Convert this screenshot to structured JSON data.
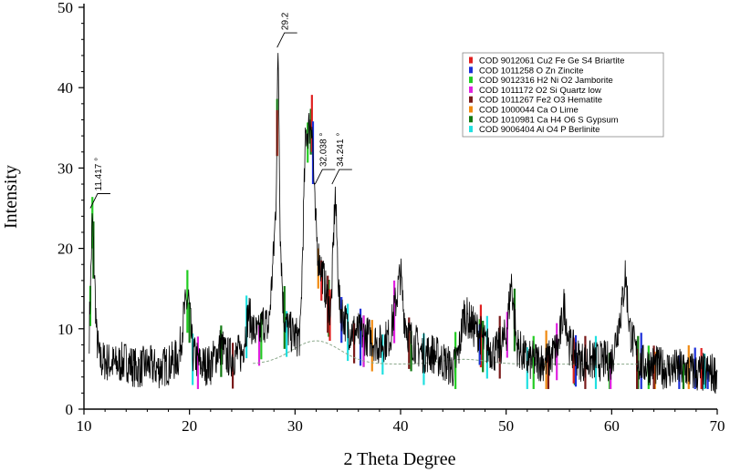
{
  "chart_data": {
    "type": "line",
    "xlabel": "2 Theta Degree",
    "ylabel": "Intensity",
    "xlim": [
      10,
      70
    ],
    "ylim": [
      0,
      50
    ],
    "x_ticks": [
      "10",
      "20",
      "30",
      "40",
      "50",
      "60",
      "70"
    ],
    "y_ticks": [
      "0",
      "10",
      "20",
      "30",
      "40",
      "50"
    ],
    "grid": false,
    "legend_position": "top-right",
    "series": [
      {
        "x": [
          10.5,
          10.8,
          11.2,
          11.5,
          12.0,
          13.0,
          14.0,
          15.0,
          16.0,
          17.0,
          18.0,
          19.0,
          19.5,
          19.9,
          20.3,
          21.0,
          22.0,
          23.0,
          23.5,
          24.0,
          25.0,
          25.6,
          26.0,
          26.5,
          27.0,
          27.5,
          28.0,
          28.2,
          28.4,
          28.6,
          28.9,
          29.3,
          30.0,
          30.5,
          31.0,
          31.3,
          31.6,
          31.9,
          32.2,
          32.6,
          33.0,
          33.4,
          33.8,
          34.2,
          35.0,
          36.0,
          37.0,
          38.0,
          39.0,
          40.0,
          40.3,
          40.8,
          41.5,
          42.0,
          43.0,
          44.0,
          45.0,
          45.5,
          46.0,
          46.5,
          47.0,
          47.5,
          48.0,
          49.0,
          50.0,
          50.5,
          51.0,
          52.0,
          53.0,
          54.0,
          55.0,
          55.5,
          56.0,
          57.0,
          58.0,
          59.0,
          60.0,
          61.0,
          61.3,
          61.7,
          62.5,
          63.0,
          64.0,
          65.0,
          66.0,
          67.0,
          68.0,
          69.0,
          70.0
        ],
        "values": [
          9.5,
          24,
          9,
          6,
          6,
          5.5,
          6,
          5,
          5.5,
          5,
          5.5,
          6.5,
          12,
          14,
          7,
          5.5,
          5.5,
          8,
          6.5,
          6.5,
          7,
          12,
          10,
          9,
          11,
          10,
          20,
          26,
          45,
          22,
          12,
          10,
          9,
          9,
          34,
          35,
          36,
          24,
          19,
          17,
          14,
          12,
          27,
          13,
          10,
          9.5,
          9,
          8,
          9,
          17,
          12,
          9,
          8,
          7,
          7,
          6,
          5,
          7,
          12,
          11,
          10,
          9.5,
          8,
          7,
          9,
          16,
          8,
          6,
          6,
          6,
          8,
          13,
          8,
          6,
          6,
          6,
          6,
          13,
          17,
          10,
          6,
          5.5,
          5.5,
          5,
          5,
          5,
          4.5,
          4.5,
          4.5
        ]
      }
    ],
    "annotations": [
      {
        "x": 10.6,
        "y": 25,
        "text": "11.417 °"
      },
      {
        "x": 28.3,
        "y": 45,
        "text": "29.2"
      },
      {
        "x": 31.9,
        "y": 28,
        "text": "32.038 °"
      },
      {
        "x": 33.5,
        "y": 28,
        "text": "34.241 °"
      }
    ],
    "legend": [
      {
        "label": "COD 9012061 Cu2 Fe Ge S4 Briartite",
        "color": "#e02020"
      },
      {
        "label": "COD 1011258 O Zn Zincite",
        "color": "#1c2fd8"
      },
      {
        "label": "COD 9012316 H2 Ni O2 Jamborite",
        "color": "#22cc22"
      },
      {
        "label": "COD 1011172 O2 Si Quartz low",
        "color": "#e020e0"
      },
      {
        "label": "COD 1011267 Fe2 O3 Hematite",
        "color": "#7a1a1a"
      },
      {
        "label": "COD 1000044 Ca O Lime",
        "color": "#f08a10"
      },
      {
        "label": "COD 1010981 Ca H4 O6 S Gypsum",
        "color": "#127a12"
      },
      {
        "label": "COD 9006404 Al O4 P Berlinite",
        "color": "#20e0e0"
      }
    ],
    "reference_peaks": [
      {
        "color": "#22cc22",
        "x": [
          10.6,
          10.8,
          19.8,
          26.8,
          28.3,
          31.2,
          36.5,
          45.2,
          47.5,
          52.6,
          59.8,
          63.5
        ]
      },
      {
        "color": "#127a12",
        "x": [
          10.9,
          20.0,
          23.0,
          29.0,
          31.5,
          33.2,
          41.0,
          47.8,
          50.8,
          56.5,
          62.5,
          66.8
        ]
      },
      {
        "color": "#e02020",
        "x": [
          28.3,
          31.6,
          32.5,
          33.3,
          47.6,
          56.4,
          68.5
        ]
      },
      {
        "color": "#1c2fd8",
        "x": [
          31.7,
          34.4,
          36.2,
          47.5,
          56.6,
          62.8,
          66.4,
          67.9,
          69.1
        ]
      },
      {
        "color": "#20e0e0",
        "x": [
          20.3,
          25.4,
          29.2,
          35.0,
          38.3,
          42.2,
          48.2,
          52.0,
          58.5,
          64.0,
          68.8
        ]
      },
      {
        "color": "#f08a10",
        "x": [
          32.2,
          37.3,
          53.8,
          64.1,
          67.3
        ]
      },
      {
        "color": "#e020e0",
        "x": [
          20.8,
          26.6,
          36.5,
          39.4,
          50.1,
          54.8,
          59.9
        ]
      },
      {
        "color": "#7a1a1a",
        "x": [
          24.1,
          33.1,
          35.6,
          40.8,
          49.4,
          54.0,
          57.5,
          62.4,
          64.0
        ]
      }
    ]
  }
}
